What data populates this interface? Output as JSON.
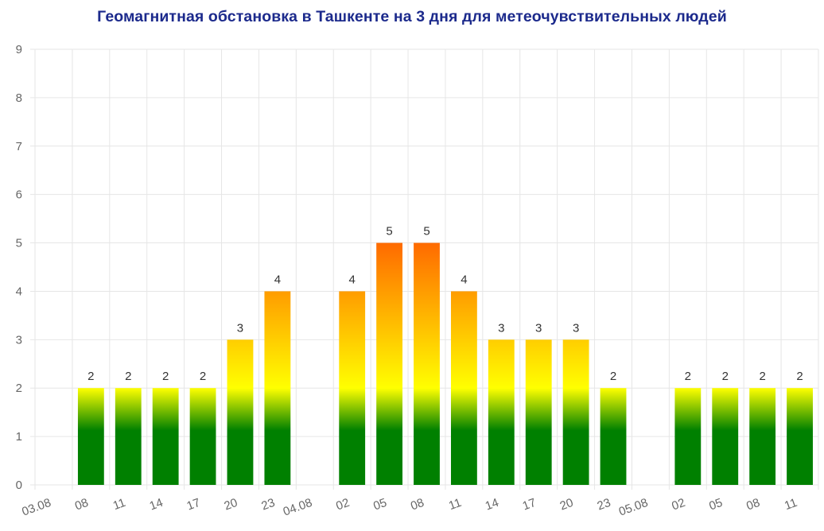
{
  "title": "Геомагнитная обстановка в Ташкенте на 3 дня для метеочувствительных людей",
  "chart_data": {
    "type": "bar",
    "title": "Геомагнитная обстановка в Ташкенте на 3 дня для метеочувствительных людей",
    "xlabel": "",
    "ylabel": "",
    "ylim": [
      0,
      9
    ],
    "yticks": [
      0,
      1,
      2,
      3,
      4,
      5,
      6,
      7,
      8,
      9
    ],
    "grid": true,
    "categories": [
      "03.08",
      "08",
      "11",
      "14",
      "17",
      "20",
      "23",
      "04.08",
      "02",
      "05",
      "08",
      "11",
      "14",
      "17",
      "20",
      "23",
      "05.08",
      "02",
      "05",
      "08",
      "11"
    ],
    "values": [
      null,
      2,
      2,
      2,
      2,
      3,
      4,
      null,
      4,
      5,
      5,
      4,
      3,
      3,
      3,
      2,
      null,
      2,
      2,
      2,
      2
    ],
    "data_labels": [
      "",
      "2",
      "2",
      "2",
      "2",
      "3",
      "4",
      "",
      "4",
      "5",
      "5",
      "4",
      "3",
      "3",
      "3",
      "2",
      "",
      "2",
      "2",
      "2",
      "2"
    ],
    "colors": {
      "low": "#008000",
      "mid": "#ffff00",
      "high": "#ff6a00",
      "grid": "#e6e6e6",
      "title": "#1c2a8c"
    }
  }
}
